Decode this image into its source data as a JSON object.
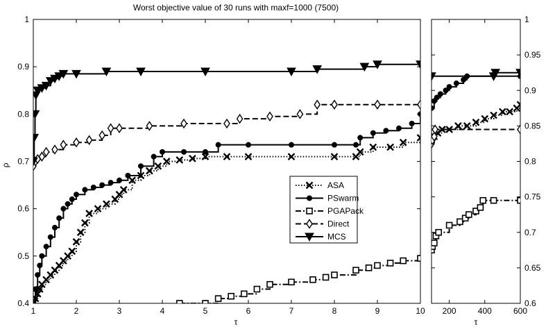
{
  "chart_data": [
    {
      "type": "line",
      "title": "Worst objective value of 30 runs with maxf=1000 (7500)",
      "xlabel": "τ",
      "ylabel": "ρ",
      "xlim": [
        1,
        10
      ],
      "ylim": [
        0.4,
        1
      ],
      "xticks": [
        "1",
        "2",
        "3",
        "4",
        "5",
        "6",
        "7",
        "8",
        "9",
        "10"
      ],
      "yticks": [
        "0.4",
        "0.5",
        "0.6",
        "0.7",
        "0.8",
        "0.9",
        "1"
      ],
      "legend_position": "center-right",
      "series": [
        {
          "name": "ASA",
          "style": "dotted",
          "marker": "x",
          "x": [
            1.0,
            1.05,
            1.1,
            1.15,
            1.2,
            1.3,
            1.4,
            1.5,
            1.6,
            1.7,
            1.8,
            1.9,
            2.0,
            2.1,
            2.2,
            2.3,
            2.5,
            2.7,
            2.9,
            3.0,
            3.1,
            3.3,
            3.5,
            3.7,
            3.9,
            4.1,
            4.4,
            4.7,
            5.0,
            5.5,
            6.0,
            7.0,
            8.0,
            8.5,
            8.6,
            8.9,
            9.3,
            9.6,
            10.0
          ],
          "y": [
            0.4,
            0.41,
            0.42,
            0.43,
            0.44,
            0.45,
            0.46,
            0.47,
            0.48,
            0.49,
            0.5,
            0.51,
            0.53,
            0.55,
            0.57,
            0.59,
            0.6,
            0.61,
            0.62,
            0.63,
            0.64,
            0.66,
            0.67,
            0.68,
            0.69,
            0.7,
            0.703,
            0.706,
            0.71,
            0.71,
            0.71,
            0.71,
            0.71,
            0.71,
            0.72,
            0.73,
            0.73,
            0.74,
            0.75
          ]
        },
        {
          "name": "PSwarm",
          "style": "solid",
          "marker": "o",
          "x": [
            1.0,
            1.05,
            1.1,
            1.15,
            1.2,
            1.3,
            1.4,
            1.5,
            1.6,
            1.7,
            1.8,
            1.9,
            2.0,
            2.2,
            2.4,
            2.6,
            2.8,
            3.0,
            3.2,
            3.5,
            3.8,
            4.0,
            4.5,
            5.0,
            5.3,
            6.0,
            7.0,
            8.0,
            8.5,
            8.6,
            8.9,
            9.2,
            9.5,
            9.8,
            10.0
          ],
          "y": [
            0.4,
            0.43,
            0.46,
            0.48,
            0.5,
            0.52,
            0.54,
            0.56,
            0.58,
            0.6,
            0.61,
            0.62,
            0.63,
            0.64,
            0.645,
            0.65,
            0.655,
            0.66,
            0.67,
            0.69,
            0.71,
            0.72,
            0.72,
            0.72,
            0.735,
            0.735,
            0.735,
            0.735,
            0.735,
            0.75,
            0.76,
            0.765,
            0.77,
            0.78,
            0.8
          ]
        },
        {
          "name": "PGAPack",
          "style": "dashdot",
          "marker": "square",
          "x": [
            4.4,
            5.0,
            5.3,
            5.6,
            5.9,
            6.2,
            6.5,
            7.0,
            7.5,
            7.8,
            8.0,
            8.5,
            8.8,
            9.0,
            9.3,
            9.6,
            10.0
          ],
          "y": [
            0.4,
            0.4,
            0.41,
            0.415,
            0.42,
            0.43,
            0.44,
            0.445,
            0.45,
            0.455,
            0.46,
            0.47,
            0.475,
            0.48,
            0.485,
            0.49,
            0.495
          ]
        },
        {
          "name": "Direct",
          "style": "dashed",
          "marker": "diamond",
          "x": [
            1.0,
            1.05,
            1.1,
            1.2,
            1.3,
            1.5,
            1.7,
            2.0,
            2.3,
            2.6,
            2.8,
            3.0,
            3.7,
            4.5,
            5.5,
            5.8,
            6.5,
            7.2,
            7.6,
            8.0,
            9.0,
            10.0
          ],
          "y": [
            0.69,
            0.7,
            0.705,
            0.71,
            0.72,
            0.725,
            0.735,
            0.74,
            0.745,
            0.755,
            0.77,
            0.77,
            0.775,
            0.78,
            0.78,
            0.79,
            0.795,
            0.8,
            0.82,
            0.82,
            0.82,
            0.82
          ]
        },
        {
          "name": "MCS",
          "style": "solid",
          "marker": "triangle-down",
          "x": [
            1.0,
            1.02,
            1.04,
            1.06,
            1.1,
            1.2,
            1.3,
            1.4,
            1.5,
            1.6,
            1.7,
            2.0,
            2.7,
            3.5,
            5.0,
            7.0,
            7.6,
            8.7,
            9.0,
            10.0
          ],
          "y": [
            0.7,
            0.75,
            0.8,
            0.84,
            0.85,
            0.855,
            0.86,
            0.87,
            0.875,
            0.88,
            0.885,
            0.885,
            0.89,
            0.89,
            0.89,
            0.89,
            0.895,
            0.9,
            0.905,
            0.905
          ]
        }
      ]
    },
    {
      "type": "line",
      "xlabel": "τ",
      "xlim": [
        100,
        600
      ],
      "ylim": [
        0.6,
        1
      ],
      "xticks": [
        "200",
        "400",
        "600"
      ],
      "yticks": [
        "0.6",
        "0.65",
        "0.7",
        "0.75",
        "0.8",
        "0.85",
        "0.9",
        "0.95",
        "1"
      ],
      "series": [
        {
          "name": "ASA",
          "style": "dotted",
          "marker": "x",
          "x": [
            100,
            115,
            135,
            160,
            200,
            250,
            300,
            350,
            400,
            450,
            500,
            540,
            580,
            600
          ],
          "y": [
            0.83,
            0.835,
            0.84,
            0.845,
            0.845,
            0.85,
            0.85,
            0.855,
            0.86,
            0.865,
            0.87,
            0.87,
            0.875,
            0.88
          ]
        },
        {
          "name": "PSwarm",
          "style": "solid",
          "marker": "o",
          "x": [
            100,
            115,
            130,
            150,
            180,
            200,
            240,
            280,
            300,
            600
          ],
          "y": [
            0.875,
            0.885,
            0.89,
            0.895,
            0.9,
            0.905,
            0.91,
            0.915,
            0.92,
            0.92
          ]
        },
        {
          "name": "PGAPack",
          "style": "dashdot",
          "marker": "square",
          "x": [
            100,
            105,
            115,
            125,
            140,
            200,
            260,
            290,
            310,
            350,
            375,
            390,
            450,
            600
          ],
          "y": [
            0.675,
            0.68,
            0.685,
            0.695,
            0.7,
            0.71,
            0.715,
            0.72,
            0.725,
            0.73,
            0.735,
            0.745,
            0.745,
            0.745
          ]
        },
        {
          "name": "Direct",
          "style": "dashed",
          "marker": "diamond",
          "x": [
            100,
            105,
            115,
            120,
            600
          ],
          "y": [
            0.825,
            0.83,
            0.835,
            0.845,
            0.845
          ]
        },
        {
          "name": "MCS",
          "style": "solid",
          "marker": "triangle-down",
          "x": [
            100,
            450,
            460,
            600
          ],
          "y": [
            0.92,
            0.92,
            0.925,
            0.925
          ]
        }
      ]
    }
  ]
}
